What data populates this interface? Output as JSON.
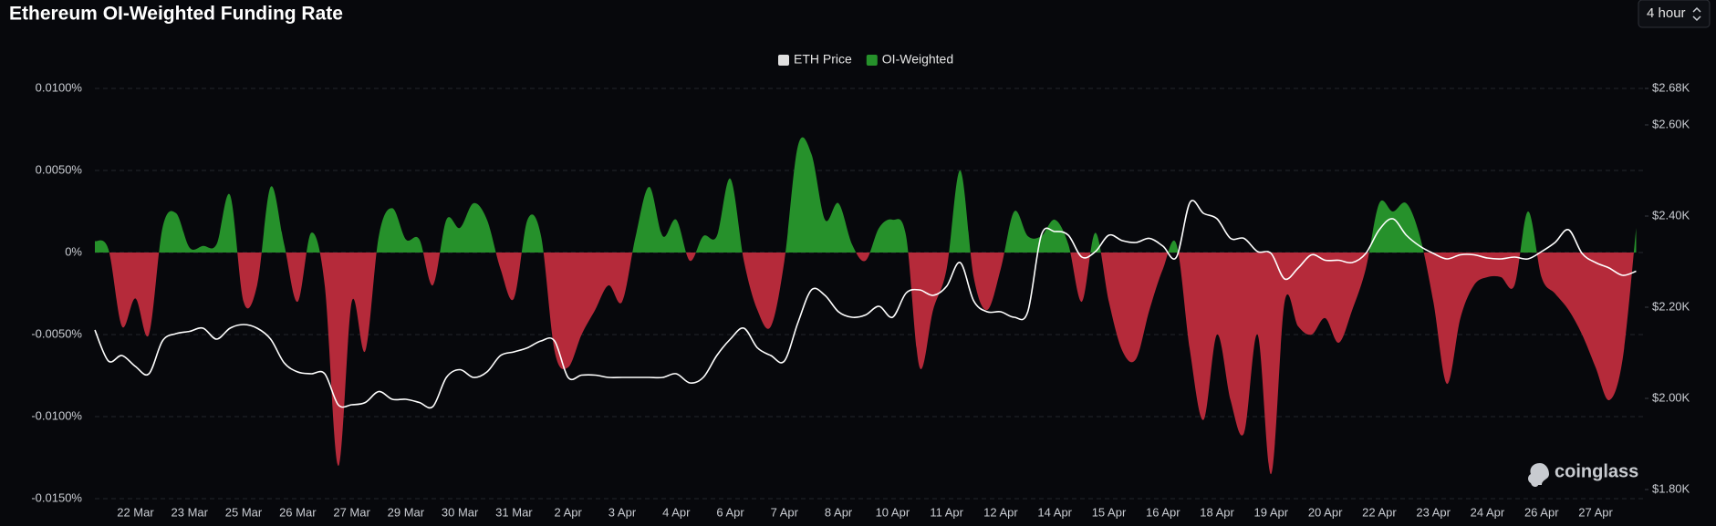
{
  "chart_data": {
    "type": "area-line",
    "title": "Ethereum OI-Weighted Funding Rate",
    "categories": [
      null,
      null,
      null,
      "22 Mar",
      null,
      null,
      null,
      "23 Mar",
      null,
      null,
      null,
      "25 Mar",
      null,
      null,
      null,
      "26 Mar",
      null,
      null,
      null,
      "27 Mar",
      null,
      null,
      null,
      "29 Mar",
      null,
      null,
      null,
      "30 Mar",
      null,
      null,
      null,
      "31 Mar",
      null,
      null,
      null,
      "2 Apr",
      null,
      null,
      null,
      "3 Apr",
      null,
      null,
      null,
      "4 Apr",
      null,
      null,
      null,
      "6 Apr",
      null,
      null,
      null,
      "7 Apr",
      null,
      null,
      null,
      "8 Apr",
      null,
      null,
      null,
      "10 Apr",
      null,
      null,
      null,
      "11 Apr",
      null,
      null,
      null,
      "12 Apr",
      null,
      null,
      null,
      "14 Apr",
      null,
      null,
      null,
      "15 Apr",
      null,
      null,
      null,
      "16 Apr",
      null,
      null,
      null,
      "18 Apr",
      null,
      null,
      null,
      "19 Apr",
      null,
      null,
      null,
      "20 Apr",
      null,
      null,
      null,
      "22 Apr",
      null,
      null,
      null,
      "23 Apr",
      null,
      null,
      null,
      "24 Apr",
      null,
      null,
      null,
      "26 Apr",
      null,
      null,
      null,
      "27 Apr",
      null,
      null,
      null
    ],
    "series": [
      {
        "name": "ETH Price",
        "color": "#ffffff",
        "legend_color": "#e0e0e0",
        "axis": "y2",
        "values": [
          2150,
          2082,
          2094,
          2070,
          2054,
          2126,
          2142,
          2147,
          2154,
          2130,
          2154,
          2162,
          2154,
          2130,
          2078,
          2058,
          2054,
          2054,
          1986,
          1986,
          1991,
          2015,
          1998,
          1998,
          1991,
          1982,
          2046,
          2063,
          2046,
          2058,
          2094,
          2102,
          2111,
          2126,
          2126,
          2046,
          2051,
          2051,
          2046,
          2046,
          2046,
          2046,
          2046,
          2054,
          2034,
          2046,
          2094,
          2130,
          2154,
          2111,
          2094,
          2082,
          2166,
          2238,
          2226,
          2190,
          2178,
          2183,
          2202,
          2178,
          2231,
          2238,
          2226,
          2246,
          2298,
          2214,
          2190,
          2190,
          2178,
          2190,
          2358,
          2366,
          2358,
          2310,
          2322,
          2358,
          2346,
          2342,
          2351,
          2334,
          2310,
          2430,
          2406,
          2394,
          2351,
          2351,
          2322,
          2318,
          2262,
          2286,
          2315,
          2303,
          2303,
          2298,
          2318,
          2370,
          2394,
          2358,
          2334,
          2318,
          2306,
          2315,
          2315,
          2308,
          2306,
          2310,
          2306,
          2322,
          2342,
          2370,
          2318,
          2298,
          2286,
          2270,
          2279
        ]
      },
      {
        "name": "OI-Weighted",
        "color": "#26912b",
        "negative_color": "#b52a3a",
        "values": [
          0.0007,
          0.0002,
          -0.0045,
          -0.0028,
          -0.005,
          0.0015,
          0.0024,
          0.0003,
          0.0004,
          0.0005,
          0.0035,
          -0.003,
          -0.002,
          0.004,
          0.0005,
          -0.003,
          0.0012,
          -0.002,
          -0.013,
          -0.003,
          -0.006,
          0.001,
          0.0027,
          0.0008,
          0.0008,
          -0.002,
          0.002,
          0.0015,
          0.003,
          0.002,
          -0.001,
          -0.0028,
          0.002,
          0.001,
          -0.006,
          -0.007,
          -0.005,
          -0.0035,
          -0.002,
          -0.003,
          0.001,
          0.004,
          0.001,
          0.002,
          -0.0005,
          0.001,
          0.001,
          0.0045,
          -0.0005,
          -0.0035,
          -0.0045,
          -0.0005,
          0.0065,
          0.006,
          0.002,
          0.003,
          0.0005,
          -0.0005,
          0.0015,
          0.002,
          0.001,
          -0.007,
          -0.0035,
          -0.001,
          0.005,
          -0.0015,
          -0.0035,
          -0.001,
          0.0025,
          0.001,
          0.001,
          0.002,
          0.0005,
          -0.003,
          0.0012,
          -0.003,
          -0.006,
          -0.0065,
          -0.0035,
          -0.001,
          0.0005,
          -0.006,
          -0.0102,
          -0.005,
          -0.009,
          -0.011,
          -0.005,
          -0.0135,
          -0.003,
          -0.0045,
          -0.005,
          -0.004,
          -0.0055,
          -0.0035,
          -0.001,
          0.003,
          0.0025,
          0.003,
          0.001,
          -0.003,
          -0.008,
          -0.004,
          -0.002,
          -0.0015,
          -0.0015,
          -0.002,
          0.0025,
          -0.0015,
          -0.0025,
          -0.0035,
          -0.005,
          -0.007,
          -0.009,
          -0.0065,
          0.0015
        ]
      }
    ],
    "ylim": [
      -0.015,
      0.01
    ],
    "yticks": [
      {
        "value": 0.01,
        "label": "0.0100%"
      },
      {
        "value": 0.005,
        "label": "0.0050%"
      },
      {
        "value": 0,
        "label": "0%"
      },
      {
        "value": -0.005,
        "label": "-0.0050%"
      },
      {
        "value": -0.01,
        "label": "-0.0100%"
      },
      {
        "value": -0.015,
        "label": "-0.0150%"
      }
    ],
    "y2lim": [
      1780,
      2680
    ],
    "y2ticks": [
      {
        "value": 2680,
        "label": "$2.68K"
      },
      {
        "value": 2600,
        "label": "$2.60K"
      },
      {
        "value": 2400,
        "label": "$2.40K"
      },
      {
        "value": 2200,
        "label": "$2.20K"
      },
      {
        "value": 2000,
        "label": "$2.00K"
      },
      {
        "value": 1800,
        "label": "$1.80K"
      }
    ],
    "grid": true,
    "legend": "top"
  },
  "controls": {
    "interval": "4 hour"
  },
  "watermark": "coinglass"
}
